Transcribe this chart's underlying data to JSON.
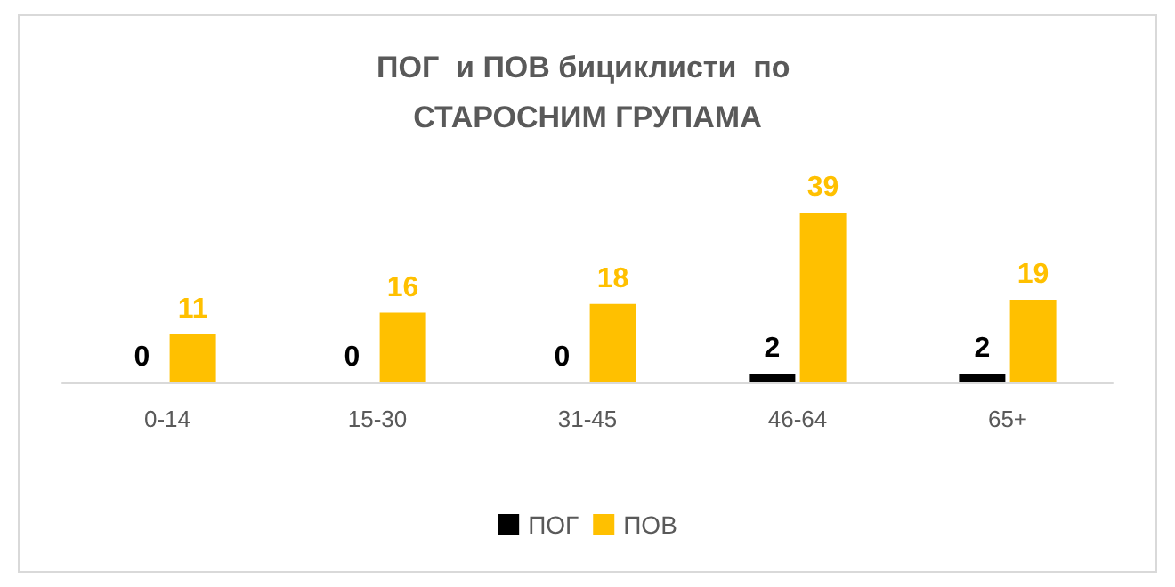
{
  "chart_data": {
    "type": "bar",
    "title": "ПОГ  и ПОВ бициклисти  по СТАРОСНИМ ГРУПАМА",
    "categories": [
      "0-14",
      "15-30",
      "31-45",
      "46-64",
      "65+"
    ],
    "series": [
      {
        "name": "ПОГ",
        "color": "#000000",
        "values": [
          0,
          0,
          0,
          2,
          2
        ]
      },
      {
        "name": "ПОВ",
        "color": "#ffc000",
        "values": [
          11,
          16,
          18,
          39,
          19
        ]
      }
    ],
    "tick_labels": "x",
    "data_labels": true,
    "legend": "bottom"
  }
}
